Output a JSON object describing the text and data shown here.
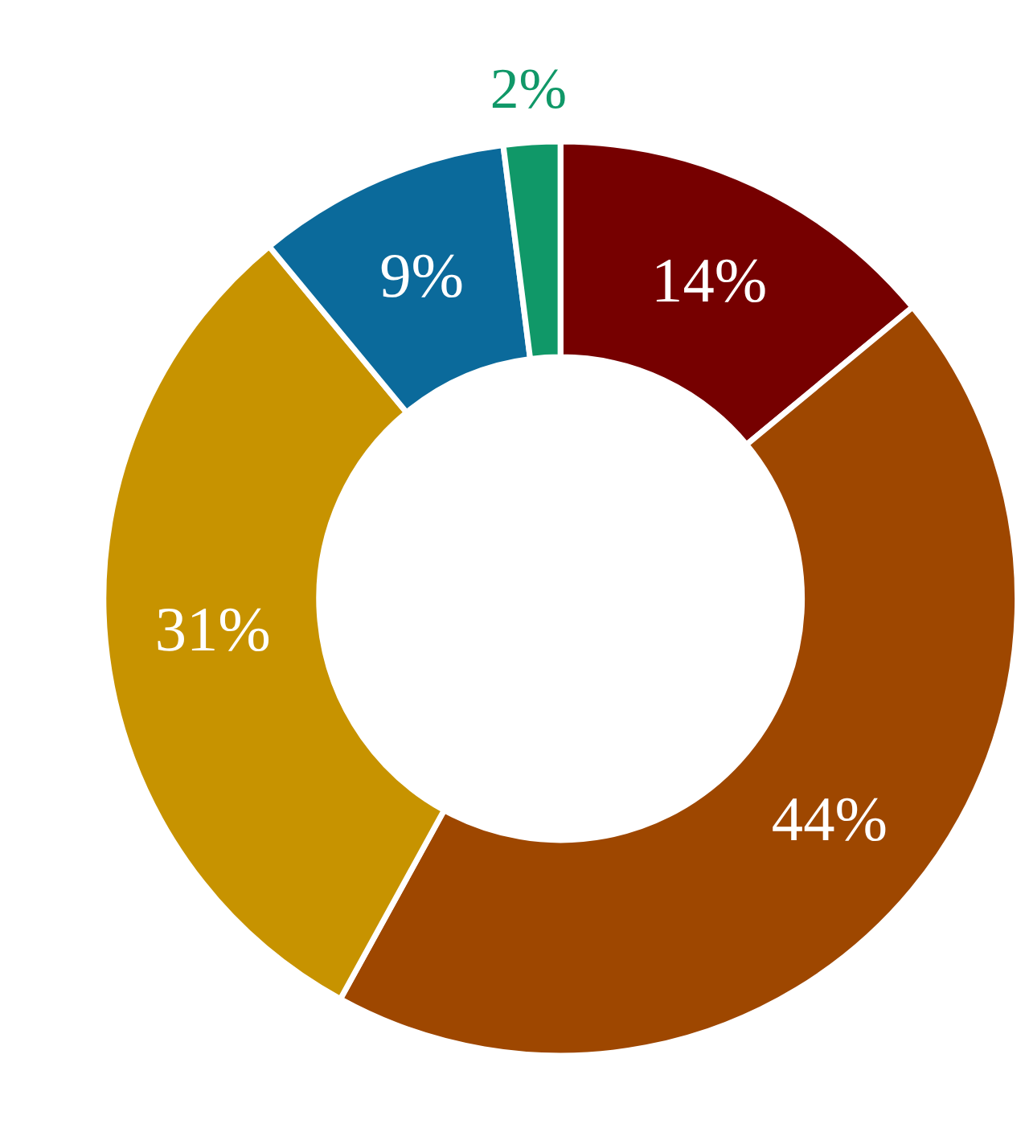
{
  "chart_data": {
    "type": "donut",
    "categories": [
      null,
      null,
      null,
      null,
      null
    ],
    "values": [
      14,
      44,
      31,
      9,
      2
    ],
    "colors": [
      "#760000",
      "#9e4700",
      "#c79300",
      "#0b6a9b",
      "#109868"
    ],
    "value_labels": [
      "14%",
      "44%",
      "31%",
      "9%",
      "2%"
    ],
    "legend": false
  }
}
